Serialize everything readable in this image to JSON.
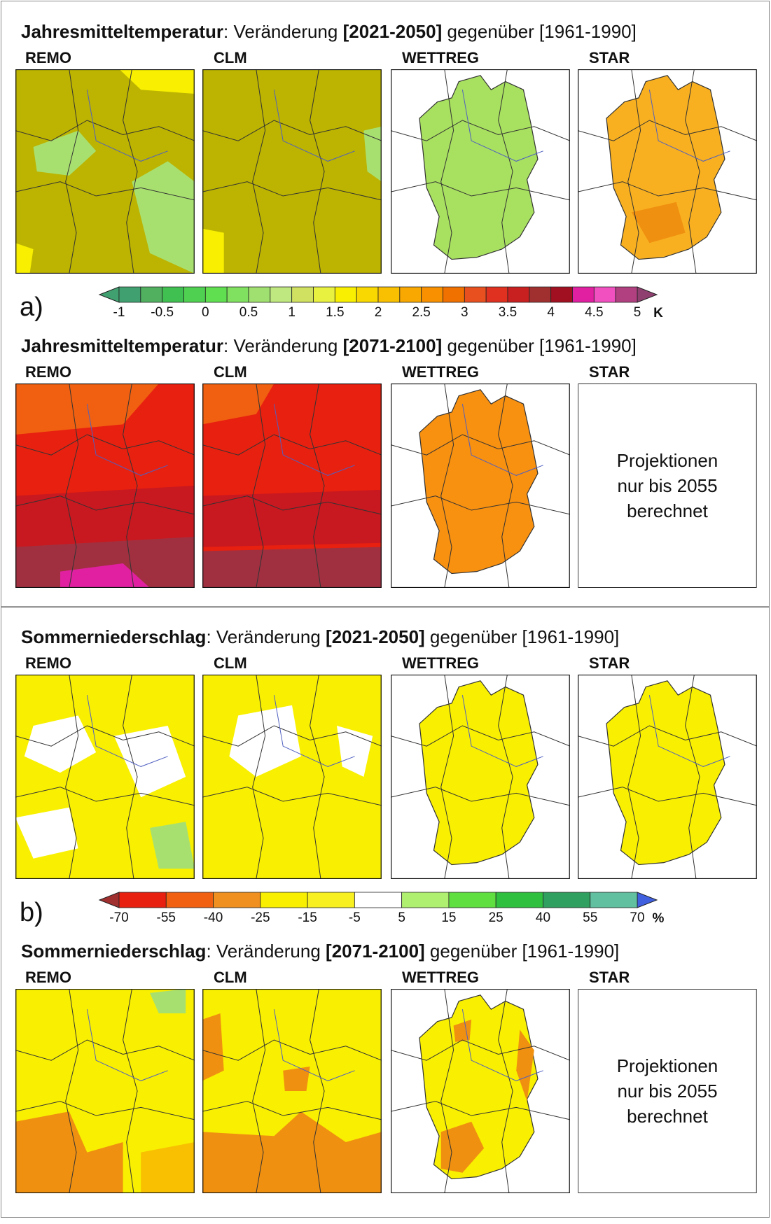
{
  "panels": [
    {
      "label": "a)",
      "colorbar": {
        "ticks": [
          "-1",
          "-0.5",
          "0",
          "0.5",
          "1",
          "1.5",
          "2",
          "2.5",
          "3",
          "3.5",
          "4",
          "4.5",
          "5"
        ],
        "unit": "K"
      },
      "rows": [
        {
          "variable": "Jahresmitteltemperatur",
          "change": ":  Veränderung",
          "period": "[2021-2050]",
          "comparison": "gegenüber [1961-1990]",
          "models": [
            "REMO",
            "CLM",
            "WETTREG",
            "STAR"
          ]
        },
        {
          "variable": "Jahresmitteltemperatur",
          "change": ":  Veränderung",
          "period": "[2071-2100]",
          "comparison": "gegenüber [1961-1990]",
          "models": [
            "REMO",
            "CLM",
            "WETTREG",
            "STAR"
          ],
          "note": [
            "Projektionen",
            "nur bis 2055",
            "berechnet"
          ]
        }
      ]
    },
    {
      "label": "b)",
      "colorbar": {
        "ticks": [
          "-70",
          "-55",
          "-40",
          "-25",
          "-15",
          "-5",
          "5",
          "15",
          "25",
          "40",
          "55",
          "70"
        ],
        "unit": "%"
      },
      "rows": [
        {
          "variable": "Sommerniederschlag",
          "change": ":  Veränderung",
          "period": "[2021-2050]",
          "comparison": "gegenüber [1961-1990]",
          "models": [
            "REMO",
            "CLM",
            "WETTREG",
            "STAR"
          ]
        },
        {
          "variable": "Sommerniederschlag",
          "change": ":  Veränderung",
          "period": "[2071-2100]",
          "comparison": "gegenüber [1961-1990]",
          "models": [
            "REMO",
            "CLM",
            "WETTREG",
            "STAR"
          ],
          "note": [
            "Projektionen",
            "nur bis 2055",
            "berechnet"
          ]
        }
      ]
    }
  ]
}
